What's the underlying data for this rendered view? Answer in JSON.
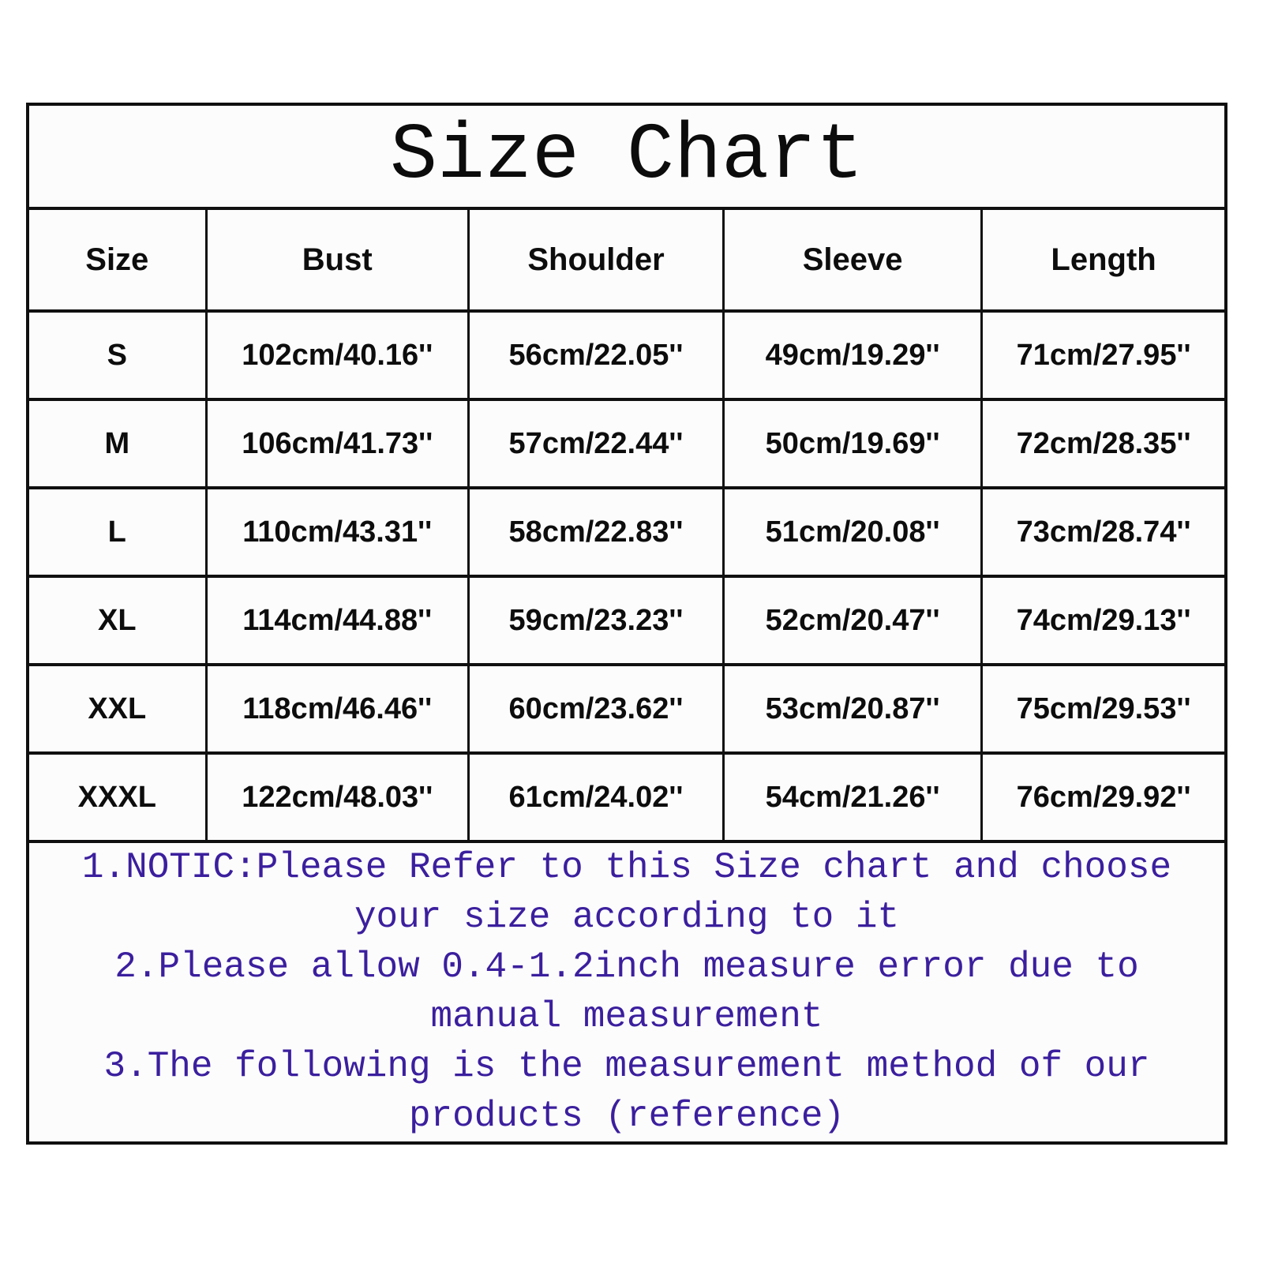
{
  "page": {
    "title": "Size Chart"
  },
  "size_table": {
    "columns": [
      "Size",
      "Bust",
      "Shoulder",
      "Sleeve",
      "Length"
    ],
    "rows": [
      [
        "S",
        "102cm/40.16''",
        "56cm/22.05''",
        "49cm/19.29''",
        "71cm/27.95''"
      ],
      [
        "M",
        "106cm/41.73''",
        "57cm/22.44''",
        "50cm/19.69''",
        "72cm/28.35''"
      ],
      [
        "L",
        "110cm/43.31''",
        "58cm/22.83''",
        "51cm/20.08''",
        "73cm/28.74''"
      ],
      [
        "XL",
        "114cm/44.88''",
        "59cm/23.23''",
        "52cm/20.47''",
        "74cm/29.13''"
      ],
      [
        "XXL",
        "118cm/46.46''",
        "60cm/23.62''",
        "53cm/20.87''",
        "75cm/29.53''"
      ],
      [
        "XXXL",
        "122cm/48.03''",
        "61cm/24.02''",
        "54cm/21.26''",
        "76cm/29.92''"
      ]
    ]
  },
  "notes": {
    "lines": [
      "1.NOTIC:Please Refer to this Size chart and choose",
      "your size according to it",
      "2.Please allow 0.4-1.2inch measure error due to",
      "manual measurement",
      "3.The following is the measurement method of our",
      "products (reference)"
    ]
  },
  "colors": {
    "border": "#101010",
    "table_text": "#0d0d0d",
    "note_text": "#3b1f9e",
    "cell_background": "#fcfcfc",
    "page_background": "#ffffff"
  },
  "chart_data": {
    "type": "table",
    "title": "Size Chart",
    "columns": [
      "Size",
      "Bust",
      "Shoulder",
      "Sleeve",
      "Length"
    ],
    "unit_note": "values shown as cm/inches",
    "rows": [
      {
        "size": "S",
        "bust_cm": 102,
        "bust_in": 40.16,
        "shoulder_cm": 56,
        "shoulder_in": 22.05,
        "sleeve_cm": 49,
        "sleeve_in": 19.29,
        "length_cm": 71,
        "length_in": 27.95
      },
      {
        "size": "M",
        "bust_cm": 106,
        "bust_in": 41.73,
        "shoulder_cm": 57,
        "shoulder_in": 22.44,
        "sleeve_cm": 50,
        "sleeve_in": 19.69,
        "length_cm": 72,
        "length_in": 28.35
      },
      {
        "size": "L",
        "bust_cm": 110,
        "bust_in": 43.31,
        "shoulder_cm": 58,
        "shoulder_in": 22.83,
        "sleeve_cm": 51,
        "sleeve_in": 20.08,
        "length_cm": 73,
        "length_in": 28.74
      },
      {
        "size": "XL",
        "bust_cm": 114,
        "bust_in": 44.88,
        "shoulder_cm": 59,
        "shoulder_in": 23.23,
        "sleeve_cm": 52,
        "sleeve_in": 20.47,
        "length_cm": 74,
        "length_in": 29.13
      },
      {
        "size": "XXL",
        "bust_cm": 118,
        "bust_in": 46.46,
        "shoulder_cm": 60,
        "shoulder_in": 23.62,
        "sleeve_cm": 53,
        "sleeve_in": 20.87,
        "length_cm": 75,
        "length_in": 29.53
      },
      {
        "size": "XXXL",
        "bust_cm": 122,
        "bust_in": 48.03,
        "shoulder_cm": 61,
        "shoulder_in": 24.02,
        "sleeve_cm": 54,
        "sleeve_in": 21.26,
        "length_cm": 76,
        "length_in": 29.92
      }
    ],
    "notes": [
      "1.NOTIC:Please Refer to this Size chart and choose your size according to it",
      "2.Please allow 0.4-1.2inch measure error due to manual measurement",
      "3.The following is the measurement method of our products (reference)"
    ]
  }
}
